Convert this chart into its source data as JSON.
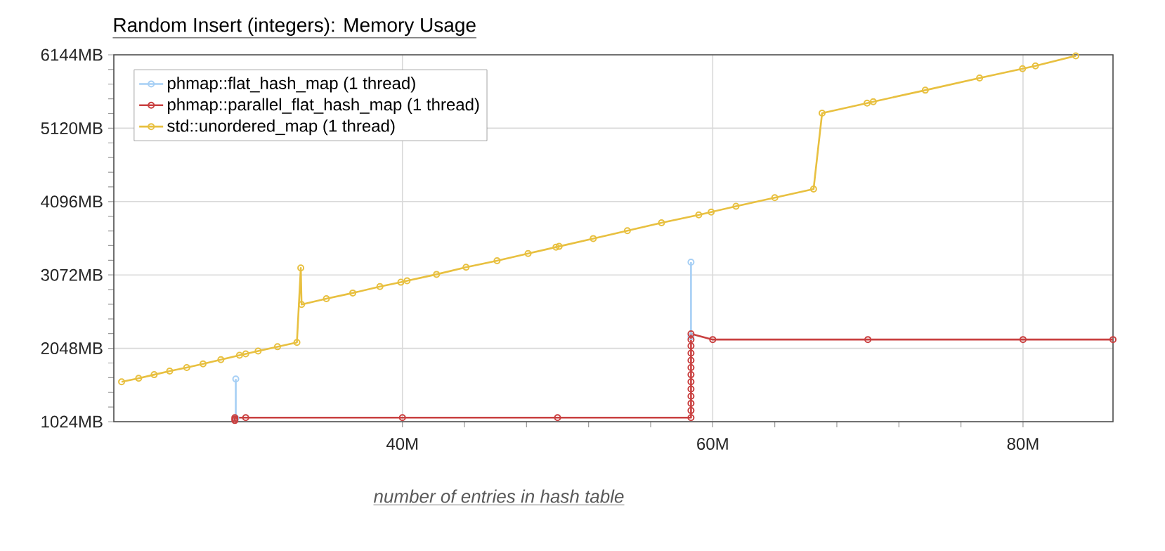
{
  "chart_data": {
    "type": "line",
    "title": "Random Insert (integers): Memory Usage",
    "xlabel": "number of entries in hash table",
    "xlim": [
      21.4,
      85.8
    ],
    "ylim": [
      1024,
      6144
    ],
    "xticks": [
      {
        "value": 40,
        "label": "40M"
      },
      {
        "value": 60,
        "label": "60M"
      },
      {
        "value": 80,
        "label": "80M"
      }
    ],
    "yticks": [
      {
        "value": 1024,
        "label": "1024MB"
      },
      {
        "value": 2048,
        "label": "2048MB"
      },
      {
        "value": 3072,
        "label": "3072MB"
      },
      {
        "value": 4096,
        "label": "4096MB"
      },
      {
        "value": 5120,
        "label": "5120MB"
      },
      {
        "value": 6144,
        "label": "6144MB"
      }
    ],
    "grid": true,
    "legend": "top left",
    "marker": "circle",
    "line_style": "solid",
    "series": [
      {
        "name": "phmap::flat_hash_map (1 thread)",
        "color": "#a6cff5",
        "x": [
          29.26,
          29.26,
          44,
          58.6,
          58.6
        ],
        "values": [
          1070,
          1620,
          null,
          2210,
          3250
        ]
      },
      {
        "name": "phmap::parallel_flat_hash_map (1 thread)",
        "color": "#c94040",
        "x": [
          29.2,
          29.2,
          29.2,
          29.9,
          40,
          50,
          58.6,
          58.6,
          58.6,
          58.6,
          58.6,
          58.6,
          58.6,
          58.6,
          58.6,
          58.6,
          58.6,
          58.6,
          58.6,
          60,
          70,
          80,
          85.8
        ],
        "values": [
          1040,
          1060,
          1080,
          1080,
          1080,
          1080,
          1080,
          1180,
          1280,
          1380,
          1480,
          1580,
          1680,
          1780,
          1880,
          1980,
          2080,
          2170,
          2250,
          2170,
          2170,
          2170,
          2170
        ]
      },
      {
        "name": "std::unordered_map (1 thread)",
        "color": "#e8c040",
        "x": [
          21.9,
          23.0,
          24.0,
          25.0,
          26.1,
          27.15,
          28.3,
          29.5,
          29.9,
          30.7,
          31.95,
          33.2,
          33.45,
          33.5,
          35.1,
          36.8,
          38.55,
          39.9,
          40.3,
          42.2,
          44.1,
          46.1,
          48.1,
          49.9,
          50.1,
          52.3,
          54.5,
          56.7,
          59.1,
          59.9,
          61.5,
          64.0,
          66.5,
          67.05,
          69.95,
          70.35,
          73.7,
          77.2,
          79.97,
          80.8,
          83.4
        ],
        "values": [
          1580,
          1630,
          1680,
          1730,
          1780,
          1830,
          1890,
          1950,
          1970,
          2010,
          2070,
          2130,
          3170,
          2660,
          2740,
          2820,
          2910,
          2970,
          2990,
          3080,
          3180,
          3270,
          3370,
          3460,
          3470,
          3580,
          3690,
          3800,
          3910,
          3950,
          4030,
          4150,
          4270,
          5330,
          5470,
          5490,
          5650,
          5820,
          5950,
          5990,
          6130
        ]
      }
    ]
  }
}
